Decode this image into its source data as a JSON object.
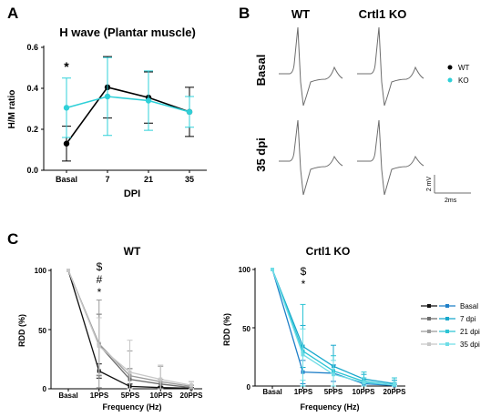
{
  "panels": {
    "a": "A",
    "b": "B",
    "c": "C"
  },
  "chart_data": [
    {
      "type": "line",
      "title": "H wave (Plantar muscle)",
      "xlabel": "DPI",
      "ylabel": "H/M ratio",
      "categories": [
        "Basal",
        "7",
        "21",
        "35"
      ],
      "ylim": [
        0,
        0.6
      ],
      "yticks": [
        "0.0",
        "0.2",
        "0.4",
        "0.6"
      ],
      "annotations": [
        {
          "category": "Basal",
          "text": "*"
        }
      ],
      "legend": {
        "placement": "right"
      },
      "series": [
        {
          "name": "WT",
          "color": "#000000",
          "values": [
            0.13,
            0.405,
            0.355,
            0.285
          ],
          "err": [
            0.085,
            0.15,
            0.125,
            0.12
          ]
        },
        {
          "name": "KO",
          "color": "#2fd0d8",
          "values": [
            0.305,
            0.36,
            0.34,
            0.285
          ],
          "err": [
            0.145,
            0.19,
            0.145,
            0.075
          ]
        }
      ]
    },
    {
      "type": "line",
      "title": "WT",
      "xlabel": "Frequency (Hz)",
      "ylabel": "RDD (%)",
      "categories": [
        "Basal",
        "1PPS",
        "5PPS",
        "10PPS",
        "20PPS"
      ],
      "ylim": [
        0,
        100
      ],
      "yticks": [
        "0",
        "50",
        "100"
      ],
      "annotations": [
        {
          "category": "1PPS",
          "lines": [
            "$",
            "#",
            "*"
          ]
        }
      ],
      "series": [
        {
          "name": "Basal",
          "color": "#111111",
          "values": [
            100,
            15,
            2,
            1,
            0.5
          ],
          "err": [
            0,
            6,
            2,
            1,
            0.5
          ]
        },
        {
          "name": "7 dpi",
          "color": "#6e6e6e",
          "values": [
            100,
            37,
            8,
            4,
            1
          ],
          "err": [
            0,
            26,
            9,
            4,
            2
          ]
        },
        {
          "name": "21 dpi",
          "color": "#9a9a9a",
          "values": [
            100,
            38,
            11,
            6,
            2
          ],
          "err": [
            0,
            37,
            21,
            13,
            4
          ]
        },
        {
          "name": "35 dpi",
          "color": "#c8c8c8",
          "values": [
            100,
            36,
            14,
            8,
            3
          ],
          "err": [
            0,
            24,
            27,
            12,
            3
          ]
        }
      ]
    },
    {
      "type": "line",
      "title": "Crtl1 KO",
      "xlabel": "Frequency (Hz)",
      "ylabel": "RDD (%)",
      "categories": [
        "Basal",
        "1PPS",
        "5PPS",
        "10PPS",
        "20PPS"
      ],
      "ylim": [
        0,
        100
      ],
      "yticks": [
        "0",
        "50",
        "100"
      ],
      "annotations": [
        {
          "category": "1PPS",
          "lines": [
            "$",
            "*"
          ]
        }
      ],
      "series": [
        {
          "name": "Basal",
          "color": "#1f7fc8",
          "values": [
            100,
            12,
            11,
            2,
            0.5
          ],
          "err": [
            0,
            10,
            7,
            2,
            1
          ]
        },
        {
          "name": "7 dpi",
          "color": "#19a8cc",
          "values": [
            100,
            34,
            17,
            6,
            2
          ],
          "err": [
            0,
            18,
            18,
            4,
            3
          ]
        },
        {
          "name": "21 dpi",
          "color": "#2cc4d4",
          "values": [
            100,
            30,
            13,
            4,
            1
          ],
          "err": [
            0,
            40,
            13,
            8,
            6
          ]
        },
        {
          "name": "35 dpi",
          "color": "#6fdde6",
          "values": [
            100,
            27,
            10,
            3,
            1
          ],
          "err": [
            0,
            22,
            12,
            4,
            2
          ]
        }
      ],
      "legend": {
        "placement": "right"
      }
    }
  ],
  "traces": {
    "columns": [
      "WT",
      "Crtl1 KO"
    ],
    "rows": [
      "Basal",
      "35 dpi"
    ],
    "scale_y": "2 mV",
    "scale_x": "2ms"
  }
}
